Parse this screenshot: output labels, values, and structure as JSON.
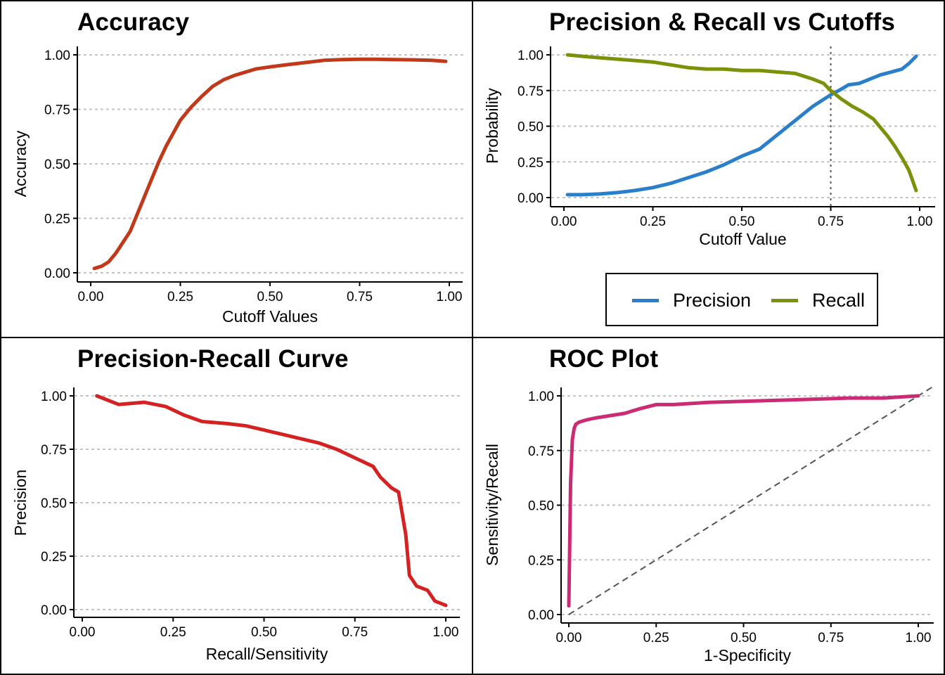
{
  "chart_data": [
    {
      "id": "accuracy",
      "type": "line",
      "title": "Accuracy",
      "xlabel": "Cutoff Values",
      "ylabel": "Accuracy",
      "xlim": [
        0,
        1
      ],
      "ylim": [
        0,
        1
      ],
      "xticks": [
        "0.00",
        "0.25",
        "0.50",
        "0.75",
        "1.00"
      ],
      "yticks": [
        "0.00",
        "0.25",
        "0.50",
        "0.75",
        "1.00"
      ],
      "grid": "horizontal dotted",
      "series": [
        {
          "color": "#C0391B",
          "x": [
            0.01,
            0.03,
            0.05,
            0.07,
            0.09,
            0.11,
            0.13,
            0.15,
            0.17,
            0.19,
            0.21,
            0.23,
            0.25,
            0.28,
            0.31,
            0.34,
            0.37,
            0.4,
            0.43,
            0.46,
            0.5,
            0.55,
            0.6,
            0.65,
            0.7,
            0.75,
            0.8,
            0.85,
            0.9,
            0.95,
            0.99
          ],
          "y": [
            0.02,
            0.03,
            0.05,
            0.09,
            0.14,
            0.19,
            0.27,
            0.35,
            0.43,
            0.51,
            0.58,
            0.64,
            0.7,
            0.76,
            0.81,
            0.855,
            0.885,
            0.905,
            0.92,
            0.935,
            0.945,
            0.955,
            0.965,
            0.975,
            0.978,
            0.98,
            0.98,
            0.978,
            0.977,
            0.975,
            0.97
          ]
        }
      ]
    },
    {
      "id": "precision-recall-cutoffs",
      "type": "line",
      "title": "Precision & Recall vs Cutoffs",
      "xlabel": "Cutoff Value",
      "ylabel": "Probability",
      "xlim": [
        0,
        1
      ],
      "ylim": [
        0,
        1
      ],
      "xticks": [
        "0.00",
        "0.25",
        "0.50",
        "0.75",
        "1.00"
      ],
      "yticks": [
        "0.00",
        "0.25",
        "0.50",
        "0.75",
        "1.00"
      ],
      "grid": "horizontal dotted",
      "vline": 0.75,
      "legend": "bottom",
      "series": [
        {
          "name": "Precision",
          "color": "#2A7FCB",
          "x": [
            0.01,
            0.05,
            0.1,
            0.15,
            0.2,
            0.25,
            0.3,
            0.35,
            0.4,
            0.45,
            0.5,
            0.55,
            0.6,
            0.65,
            0.7,
            0.75,
            0.78,
            0.8,
            0.83,
            0.86,
            0.89,
            0.92,
            0.95,
            0.97,
            0.99
          ],
          "y": [
            0.02,
            0.02,
            0.025,
            0.035,
            0.05,
            0.07,
            0.1,
            0.14,
            0.18,
            0.23,
            0.29,
            0.34,
            0.44,
            0.54,
            0.64,
            0.72,
            0.76,
            0.79,
            0.8,
            0.83,
            0.86,
            0.88,
            0.9,
            0.94,
            0.99
          ]
        },
        {
          "name": "Recall",
          "color": "#7D9009",
          "x": [
            0.01,
            0.05,
            0.1,
            0.15,
            0.2,
            0.25,
            0.3,
            0.35,
            0.4,
            0.45,
            0.5,
            0.55,
            0.6,
            0.65,
            0.7,
            0.73,
            0.75,
            0.78,
            0.81,
            0.84,
            0.87,
            0.89,
            0.91,
            0.93,
            0.95,
            0.97,
            0.99
          ],
          "y": [
            1.0,
            0.99,
            0.98,
            0.97,
            0.96,
            0.95,
            0.93,
            0.91,
            0.9,
            0.9,
            0.89,
            0.89,
            0.88,
            0.87,
            0.83,
            0.8,
            0.75,
            0.69,
            0.64,
            0.6,
            0.55,
            0.49,
            0.43,
            0.36,
            0.28,
            0.19,
            0.05
          ]
        }
      ]
    },
    {
      "id": "precision-recall-curve",
      "type": "line",
      "title": "Precision-Recall Curve",
      "xlabel": "Recall/Sensitivity",
      "ylabel": "Precision",
      "xlim": [
        0,
        1
      ],
      "ylim": [
        0,
        1
      ],
      "xticks": [
        "0.00",
        "0.25",
        "0.50",
        "0.75",
        "1.00"
      ],
      "yticks": [
        "0.00",
        "0.25",
        "0.50",
        "0.75",
        "1.00"
      ],
      "grid": "horizontal dotted",
      "series": [
        {
          "color": "#D42222",
          "x": [
            0.04,
            0.1,
            0.17,
            0.23,
            0.28,
            0.33,
            0.4,
            0.45,
            0.5,
            0.55,
            0.6,
            0.65,
            0.7,
            0.75,
            0.8,
            0.82,
            0.85,
            0.87,
            0.88,
            0.89,
            0.9,
            0.92,
            0.95,
            0.97,
            1.0
          ],
          "y": [
            1.0,
            0.96,
            0.97,
            0.95,
            0.91,
            0.88,
            0.87,
            0.86,
            0.84,
            0.82,
            0.8,
            0.78,
            0.75,
            0.71,
            0.67,
            0.62,
            0.57,
            0.55,
            0.45,
            0.35,
            0.16,
            0.11,
            0.09,
            0.04,
            0.02
          ]
        }
      ]
    },
    {
      "id": "roc-plot",
      "type": "line",
      "title": "ROC Plot",
      "xlabel": "1-Specificity",
      "ylabel": "Sensitivity/Recall",
      "xlim": [
        0,
        1
      ],
      "ylim": [
        0,
        1
      ],
      "xticks": [
        "0.00",
        "0.25",
        "0.50",
        "0.75",
        "1.00"
      ],
      "yticks": [
        "0.00",
        "0.25",
        "0.50",
        "0.75",
        "1.00"
      ],
      "grid": "horizontal dotted",
      "diagonal": true,
      "series": [
        {
          "color": "#CC2A74",
          "x": [
            0.0,
            0.005,
            0.01,
            0.015,
            0.02,
            0.03,
            0.05,
            0.08,
            0.12,
            0.16,
            0.2,
            0.25,
            0.3,
            0.4,
            0.5,
            0.6,
            0.7,
            0.8,
            0.9,
            1.0
          ],
          "y": [
            0.04,
            0.6,
            0.8,
            0.85,
            0.87,
            0.88,
            0.89,
            0.9,
            0.91,
            0.92,
            0.94,
            0.96,
            0.96,
            0.97,
            0.975,
            0.98,
            0.985,
            0.99,
            0.99,
            1.0
          ]
        }
      ]
    }
  ]
}
